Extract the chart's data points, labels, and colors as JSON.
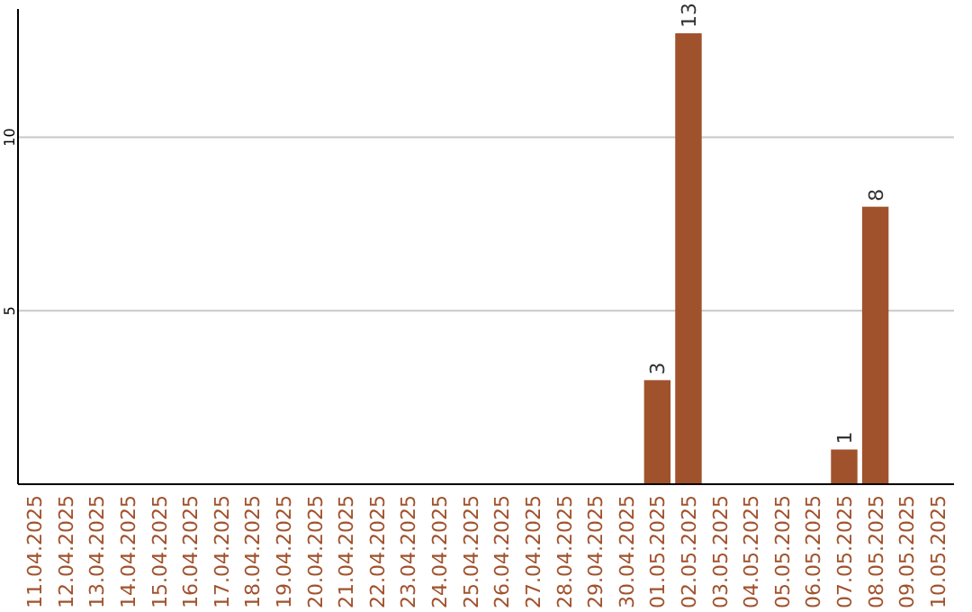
{
  "chart_data": {
    "type": "bar",
    "categories": [
      "11.04.2025",
      "12.04.2025",
      "13.04.2025",
      "14.04.2025",
      "15.04.2025",
      "16.04.2025",
      "17.04.2025",
      "18.04.2025",
      "19.04.2025",
      "20.04.2025",
      "21.04.2025",
      "22.04.2025",
      "23.04.2025",
      "24.04.2025",
      "25.04.2025",
      "26.04.2025",
      "27.04.2025",
      "28.04.2025",
      "29.04.2025",
      "30.04.2025",
      "01.05.2025",
      "02.05.2025",
      "03.05.2025",
      "04.05.2025",
      "05.05.2025",
      "06.05.2025",
      "07.05.2025",
      "08.05.2025",
      "09.05.2025",
      "10.05.2025"
    ],
    "values": [
      0,
      0,
      0,
      0,
      0,
      0,
      0,
      0,
      0,
      0,
      0,
      0,
      0,
      0,
      0,
      0,
      0,
      0,
      0,
      0,
      3,
      13,
      0,
      0,
      0,
      0,
      1,
      8,
      0,
      0
    ],
    "value_labels": [
      null,
      null,
      null,
      null,
      null,
      null,
      null,
      null,
      null,
      null,
      null,
      null,
      null,
      null,
      null,
      null,
      null,
      null,
      null,
      null,
      "3",
      "13",
      null,
      null,
      null,
      null,
      "1",
      "8",
      null,
      null
    ],
    "color": "#a0522d",
    "ylim": [
      0,
      13.7
    ],
    "yticks": [
      5,
      10
    ],
    "grid": "y"
  }
}
